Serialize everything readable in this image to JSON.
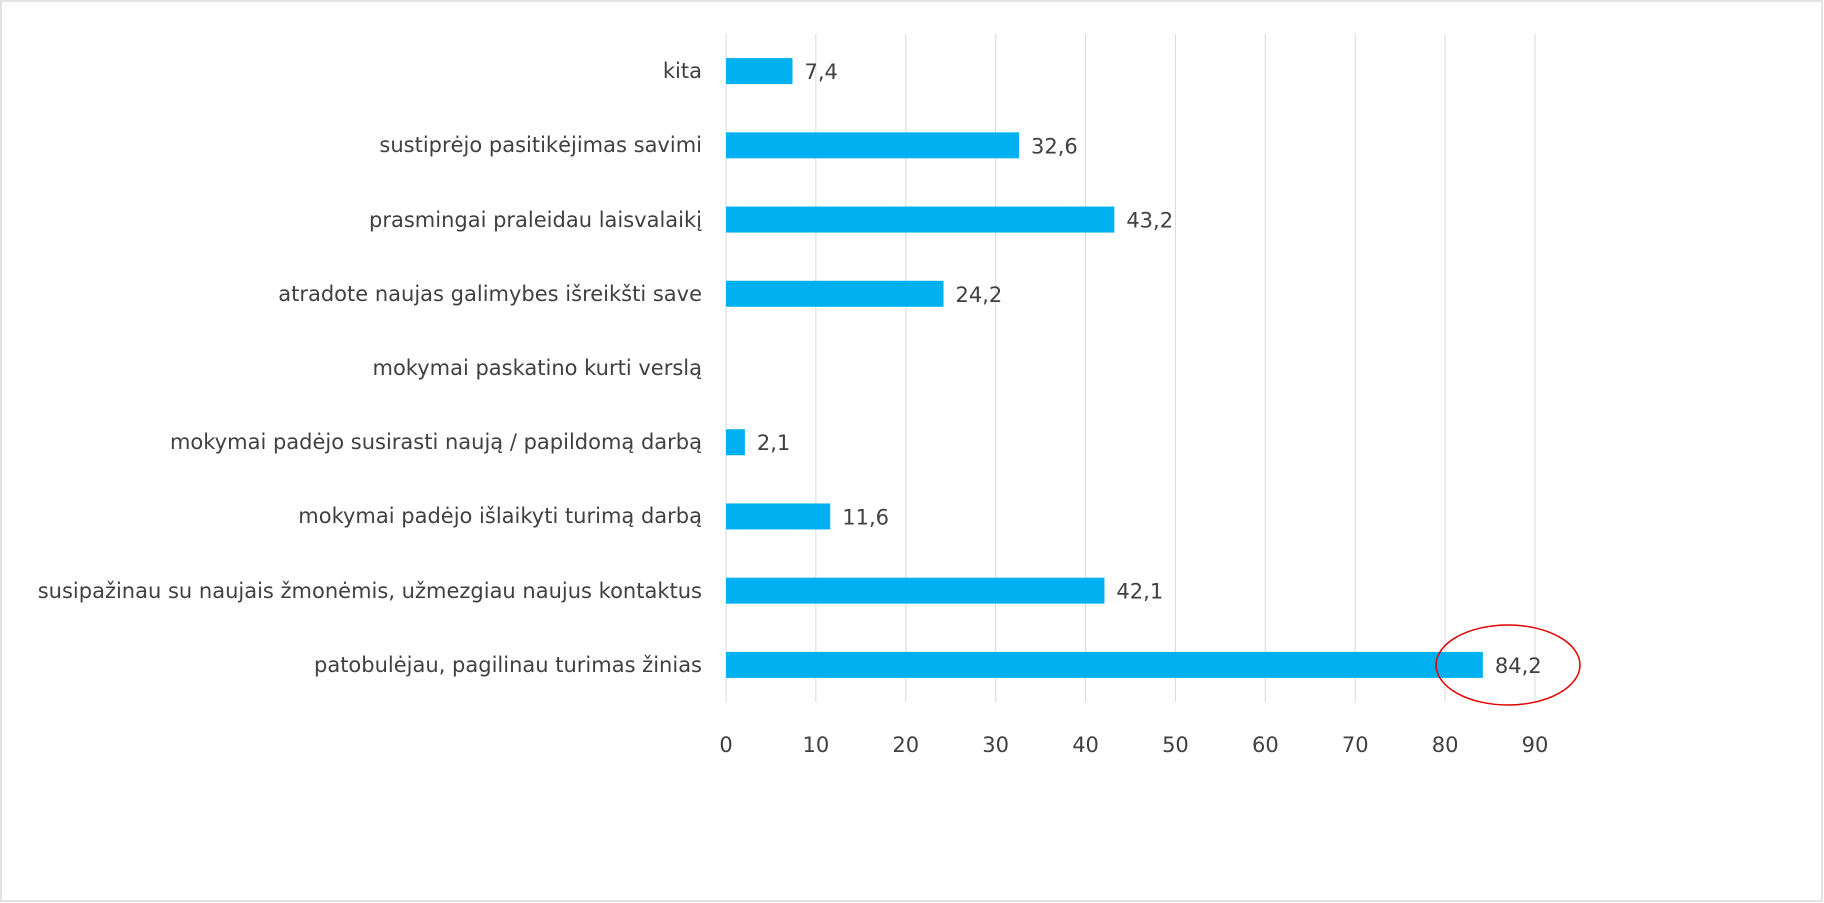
{
  "chart_data": {
    "type": "barh",
    "categories": [
      "kita",
      "sustiprėjo pasitikėjimas savimi",
      "prasmingai praleidau laisvalaikį",
      "atradote naujas galimybes išreikšti save",
      "mokymai paskatino kurti verslą",
      "mokymai padėjo susirasti naują / papildomą darbą",
      "mokymai padėjo išlaikyti turimą darbą",
      "susipažinau su naujais žmonėmis, užmezgiau naujus kontaktus",
      "patobulėjau, pagilinau turimas žinias"
    ],
    "values": [
      7.4,
      32.6,
      43.2,
      24.2,
      null,
      2.1,
      11.6,
      42.1,
      84.2
    ],
    "value_labels": [
      "7,4",
      "32,6",
      "43,2",
      "24,2",
      null,
      "2,1",
      "11,6",
      "42,1",
      "84,2"
    ],
    "color": "#00b0f0",
    "xlim": [
      0,
      90
    ],
    "xticks": [
      0,
      10,
      20,
      30,
      40,
      50,
      60,
      70,
      80,
      90
    ],
    "grid": true
  }
}
